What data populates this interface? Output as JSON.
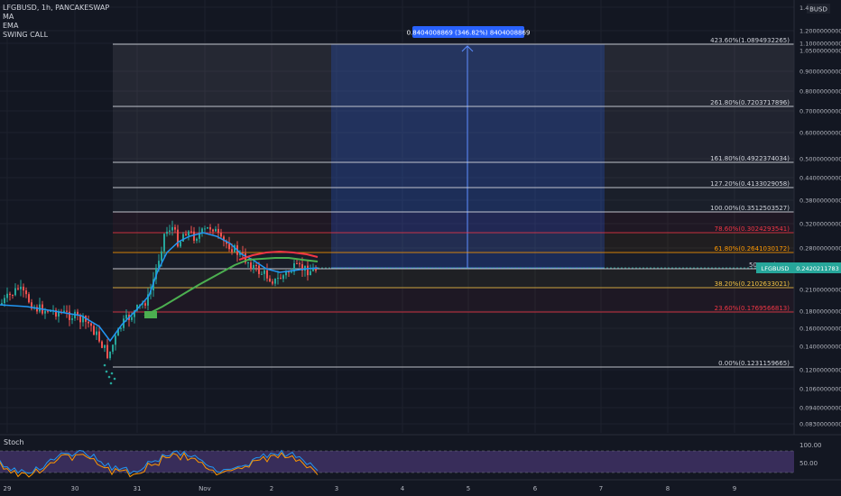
{
  "legend": {
    "title": "LFGBUSD, 1h, PANCAKESWAP",
    "indicators": [
      "MA",
      "EMA",
      "SWING CALL"
    ]
  },
  "currency": "BUSD",
  "y_axis_labels": [
    "1.4000000000",
    "1.2000000000",
    "1.1000000000",
    "1.0500000000",
    "0.9000000000",
    "0.8000000000",
    "0.7000000000",
    "0.6000000000",
    "0.5000000000",
    "0.4400000000",
    "0.3800000000",
    "0.3200000000",
    "0.2800000000",
    "0.2100000000",
    "0.1800000000",
    "0.1600000000",
    "0.1400000000",
    "0.1200000000",
    "0.1060000000",
    "0.0940000000",
    "0.0830000000"
  ],
  "current_price": {
    "symbol": "LFGBUSD",
    "value": "0.2420211783"
  },
  "fib_levels": [
    {
      "label": "423.60%(1.0894932265)"
    },
    {
      "label": "261.80%(0.7203717896)"
    },
    {
      "label": "161.80%(0.4922374034)"
    },
    {
      "label": "127.20%(0.4133029058)"
    },
    {
      "label": "100.00%(0.3512503527)"
    },
    {
      "label": "78.60%(0.3024293541)"
    },
    {
      "label": "61.80%(0.2641030172)"
    },
    {
      "label": "50.00%(0.23"
    },
    {
      "label": "38.20%(0.2102633021)"
    },
    {
      "label": "23.60%(0.1769566813)"
    },
    {
      "label": "0.00%(0.1231159665)"
    }
  ],
  "measure_label": "0.8404008869 (346.82%) 8404008869",
  "stoch": {
    "label": "Stoch",
    "levels": [
      "100.00",
      "50.00"
    ]
  },
  "x_axis_labels": [
    "29",
    "30",
    "31",
    "Nov",
    "2",
    "3",
    "4",
    "5",
    "6",
    "7",
    "8",
    "9"
  ],
  "colors": {
    "background": "#131722",
    "up_candle": "#26a69a",
    "down_candle": "#ef5350",
    "ema": "#2196f3",
    "ma_slow": "#4caf50",
    "ma_red": "#f23645",
    "price_badge": "#26a69a",
    "measure": "#2962ff",
    "fib_red": "#f23645",
    "fib_orange": "#ff9800",
    "fib_gold": "#f6c343"
  }
}
